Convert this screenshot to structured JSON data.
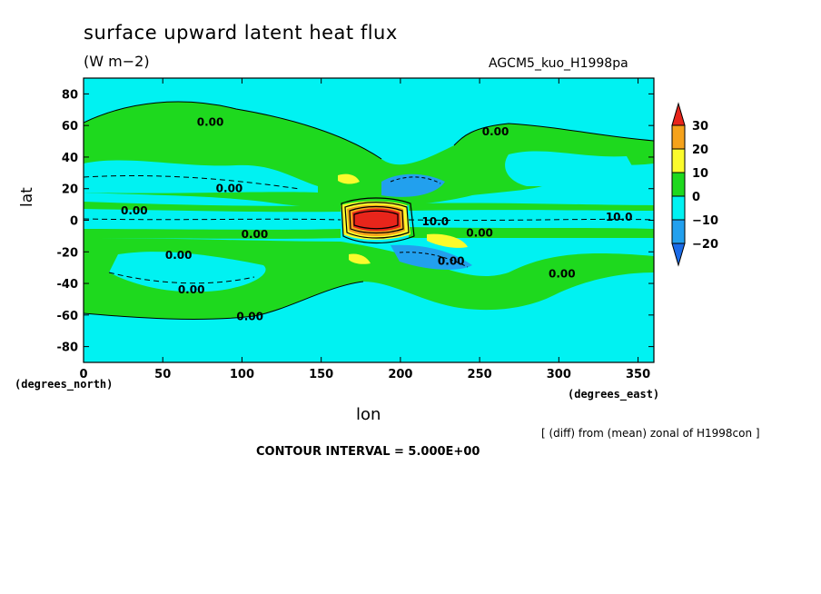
{
  "chart_data": {
    "type": "heatmap",
    "title": "surface upward latent heat flux",
    "units": "(W m−2)",
    "experiment": "AGCM5_kuo_H1998pa",
    "xlabel": "lon",
    "ylabel": "lat",
    "x_unit_label": "(degrees_east)",
    "y_unit_label": "(degrees_north)",
    "xlim": [
      0,
      360
    ],
    "ylim": [
      -90,
      90
    ],
    "x_ticks": [
      0,
      50,
      100,
      150,
      200,
      250,
      300,
      350
    ],
    "y_ticks": [
      80,
      60,
      40,
      20,
      0,
      -20,
      -40,
      -60,
      -80
    ],
    "note": "[ (diff) from (mean) zonal of H1998con ]",
    "contour_interval_text": "CONTOUR INTERVAL = 5.000E+00",
    "colorbar": {
      "ticks": [
        30,
        20,
        10,
        0,
        -10,
        -20
      ],
      "colors": {
        "above_30": "#e8251b",
        "20_30": "#f5a21b",
        "10_20": "#fbfb2c",
        "0_10": "#1ed91e",
        "m10_0": "#00f2f2",
        "m20_m10": "#22a0ee",
        "below_m20": "#1a6be8"
      }
    },
    "contour_labels": [
      {
        "lon": 80,
        "lat": 62,
        "text": "0.00"
      },
      {
        "lon": 260,
        "lat": 56,
        "text": "0.00"
      },
      {
        "lon": 92,
        "lat": 20,
        "text": "0.00"
      },
      {
        "lon": 32,
        "lat": 6,
        "text": "0.00"
      },
      {
        "lon": 108,
        "lat": -9,
        "text": "0.00"
      },
      {
        "lon": 60,
        "lat": -22,
        "text": "0.00"
      },
      {
        "lon": 68,
        "lat": -44,
        "text": "0.00"
      },
      {
        "lon": 105,
        "lat": -61,
        "text": "0.00"
      },
      {
        "lon": 222,
        "lat": -1,
        "text": "10.0"
      },
      {
        "lon": 250,
        "lat": -8,
        "text": "0.00"
      },
      {
        "lon": 232,
        "lat": -26,
        "text": "0.00"
      },
      {
        "lon": 302,
        "lat": -34,
        "text": "0.00"
      },
      {
        "lon": 338,
        "lat": 2,
        "text": "10.0"
      }
    ]
  }
}
